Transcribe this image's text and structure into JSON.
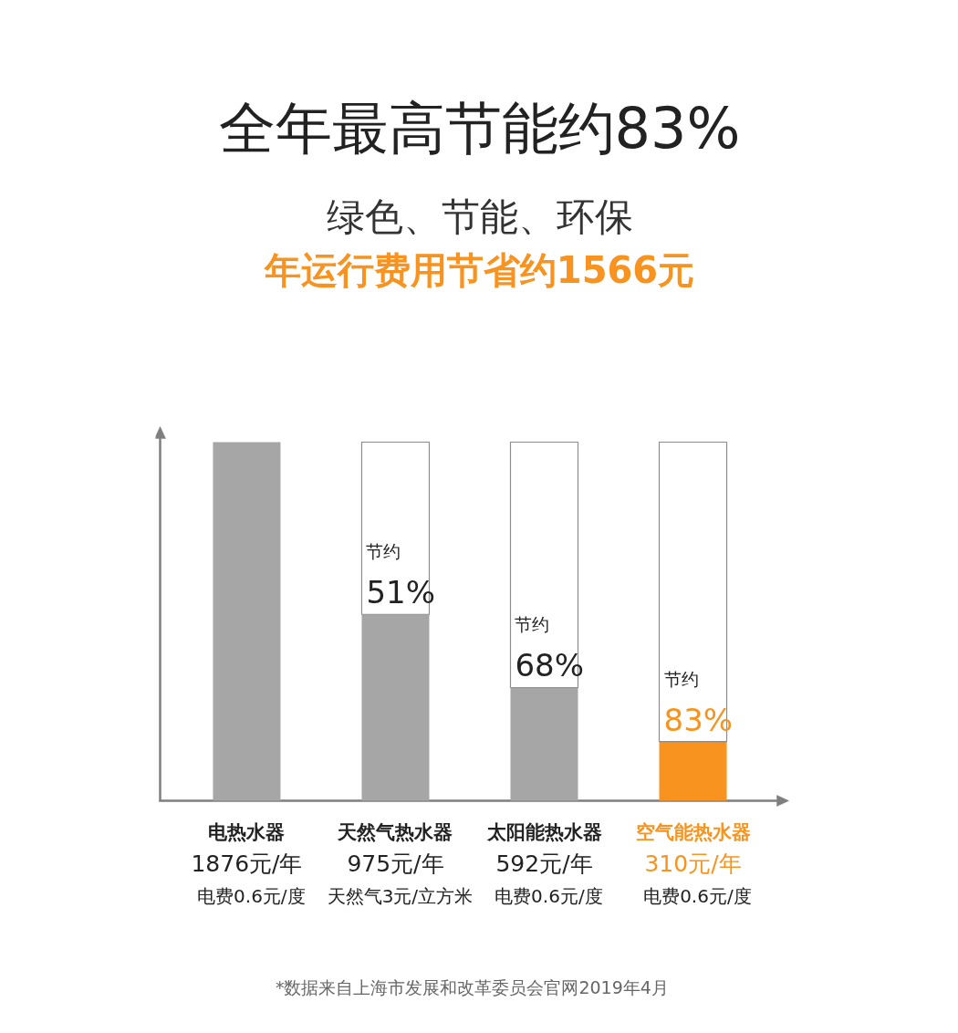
{
  "chart_data": {
    "type": "bar",
    "title": "全年最高节能约83%",
    "subtitle": "绿色、节能、环保",
    "categories": [
      "电热水器",
      "天然气热水器",
      "太阳能热水器",
      "空气能热水器"
    ],
    "stacked": true,
    "tick_labels": "x",
    "series": [
      {
        "color": "#a6a6a6",
        "colors": [
          "#a6a6a6",
          "#a6a6a6",
          "#a6a6a6",
          "#f7931e"
        ],
        "values": [
          1876,
          975,
          592,
          310
        ],
        "value_labels": [
          "1876元/年",
          "975元/年",
          "592元/年",
          "310元/年"
        ]
      },
      {
        "color": "#ffffff",
        "values": [
          null,
          901,
          1284,
          1566
        ],
        "value_labels": [
          null,
          "节约\n51%",
          "节约\n68%",
          "节约\n83%"
        ]
      }
    ],
    "annotations": [
      "年运行费用节省约1566元",
      "电费0.6元/度",
      "天然气3元/立方米",
      "电费0.6元/度",
      "电费0.6元/度",
      "*数据来自上海市发展和改革委员会官网2019年4月"
    ]
  }
}
